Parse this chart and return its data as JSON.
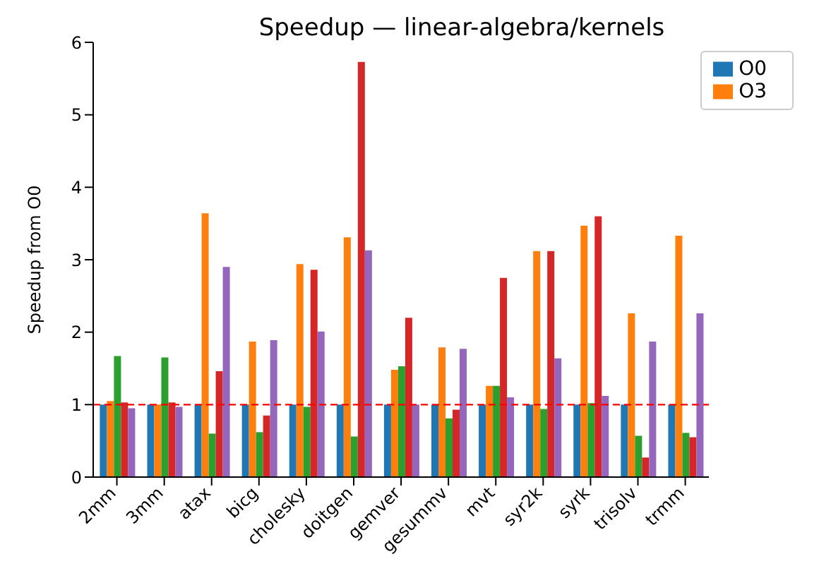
{
  "chart_data": {
    "type": "bar",
    "title": "Speedup — linear-algebra/kernels",
    "ylabel": "Speedup from O0",
    "categories": [
      "2mm",
      "3mm",
      "atax",
      "bicg",
      "cholesky",
      "doitgen",
      "gemver",
      "gesummv",
      "mvt",
      "syr2k",
      "syrk",
      "trisolv",
      "trmm"
    ],
    "series": [
      {
        "name": "O0",
        "color": "#1f77b4",
        "values": [
          1,
          1,
          1,
          1,
          1,
          1,
          1,
          1,
          1,
          1,
          1,
          1,
          1
        ]
      },
      {
        "name": "O3",
        "color": "#ff7f0e",
        "values": [
          1.05,
          1.0,
          3.64,
          1.87,
          2.94,
          3.31,
          1.48,
          1.79,
          1.26,
          3.12,
          3.47,
          2.26,
          3.33
        ]
      },
      {
        "color": "#2ca02c",
        "values": [
          1.67,
          1.65,
          0.6,
          0.62,
          0.97,
          0.56,
          1.53,
          0.81,
          1.26,
          0.94,
          1.02,
          0.57,
          0.61
        ]
      },
      {
        "color": "#d62728",
        "values": [
          1.03,
          1.03,
          1.46,
          0.85,
          2.86,
          5.73,
          2.2,
          0.93,
          2.75,
          3.12,
          3.6,
          0.27,
          0.55
        ]
      },
      {
        "color": "#9467bd",
        "values": [
          0.95,
          0.97,
          2.9,
          1.89,
          2.01,
          3.13,
          1.0,
          1.77,
          1.1,
          1.64,
          1.12,
          1.87,
          2.26
        ]
      }
    ],
    "ylim": [
      0,
      6
    ],
    "yticks": [
      0,
      1,
      2,
      3,
      4,
      5,
      6
    ],
    "ref_lines": [
      {
        "axis": "y",
        "value": 1,
        "color": "#ff0000",
        "line_style": "dashed"
      }
    ],
    "legend": "top right"
  }
}
